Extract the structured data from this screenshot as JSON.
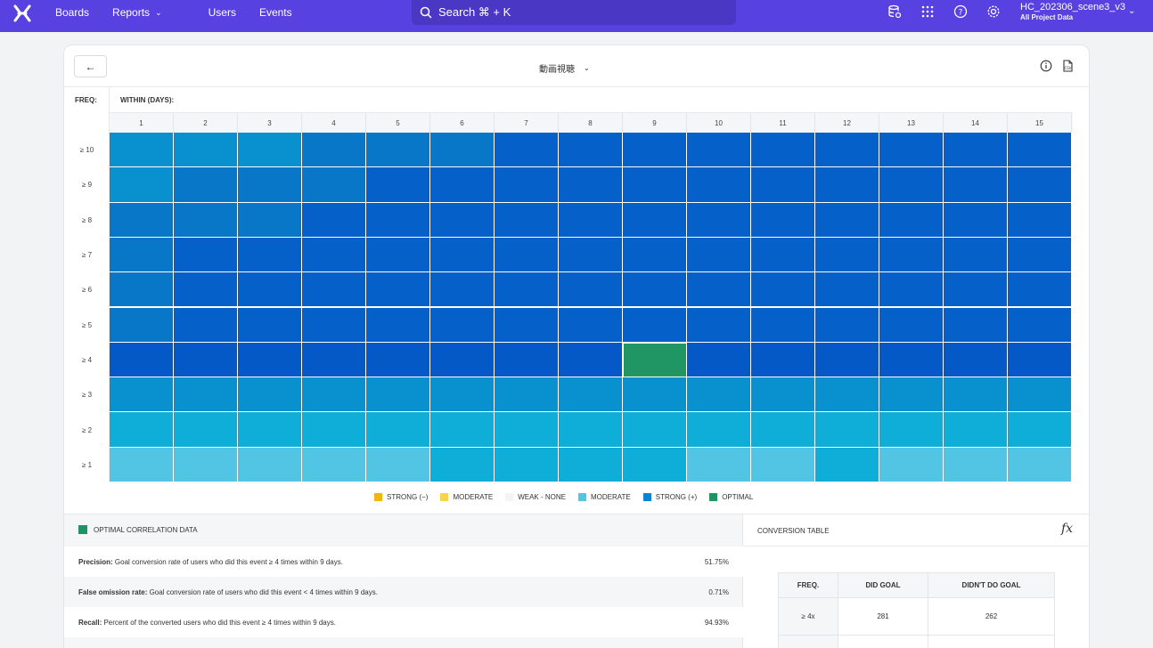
{
  "nav": {
    "links": [
      "Boards",
      "Reports",
      "Users",
      "Events"
    ],
    "search_label": "Search ⌘ + K",
    "project_name": "HC_202306_scene3_v3",
    "project_sub": "All Project Data",
    "icons": [
      "database-icon",
      "grid-apps-icon",
      "help-icon",
      "settings-icon"
    ]
  },
  "card": {
    "back_label": "←",
    "event_title": "動画視聴",
    "freq_label": "FREQ:",
    "within_label": "WITHIN (DAYS):"
  },
  "heatmap": {
    "columns": [
      "1",
      "2",
      "3",
      "4",
      "5",
      "6",
      "7",
      "8",
      "9",
      "10",
      "11",
      "12",
      "13",
      "14",
      "15"
    ],
    "rows": [
      "≥ 10",
      "≥ 9",
      "≥ 8",
      "≥ 7",
      "≥ 6",
      "≥ 5",
      "≥ 4",
      "≥ 3",
      "≥ 2",
      "≥ 1"
    ],
    "optimal": {
      "row": 6,
      "col": 8
    },
    "cell_levels": [
      [
        2,
        2,
        2,
        3,
        3,
        3,
        4,
        4,
        4,
        4,
        4,
        4,
        4,
        4,
        4
      ],
      [
        2,
        3,
        3,
        3,
        4,
        4,
        4,
        4,
        4,
        4,
        4,
        4,
        4,
        4,
        4
      ],
      [
        3,
        3,
        3,
        4,
        4,
        4,
        4,
        4,
        4,
        4,
        4,
        4,
        4,
        4,
        4
      ],
      [
        3,
        4,
        4,
        4,
        4,
        4,
        4,
        4,
        4,
        4,
        4,
        4,
        4,
        4,
        4
      ],
      [
        3,
        4,
        4,
        4,
        4,
        4,
        4,
        4,
        4,
        4,
        4,
        4,
        4,
        4,
        4
      ],
      [
        3,
        4,
        4,
        4,
        4,
        4,
        4,
        4,
        4,
        4,
        4,
        4,
        4,
        4,
        4
      ],
      [
        5,
        5,
        5,
        5,
        5,
        5,
        5,
        5,
        9,
        5,
        5,
        5,
        5,
        5,
        5
      ],
      [
        2,
        2,
        2,
        2,
        2,
        2,
        2,
        2,
        2,
        2,
        2,
        2,
        2,
        2,
        2
      ],
      [
        1,
        1,
        1,
        1,
        1,
        1,
        1,
        1,
        1,
        1,
        1,
        1,
        1,
        1,
        1
      ],
      [
        0,
        0,
        0,
        0,
        0,
        1,
        1,
        1,
        1,
        0,
        0,
        1,
        0,
        0,
        0
      ]
    ],
    "palette": {
      "0": "#52c5e5",
      "1": "#0eaed8",
      "2": "#0890cf",
      "3": "#0877c8",
      "4": "#0561c9",
      "5": "#0559c6",
      "9": "#209664"
    }
  },
  "legend": [
    {
      "label": "STRONG (−)",
      "color": "#f2b50a"
    },
    {
      "label": "MODERATE",
      "color": "#f7d54a"
    },
    {
      "label": "WEAK - NONE",
      "color": "#f3f4f6"
    },
    {
      "label": "MODERATE",
      "color": "#52c5e5"
    },
    {
      "label": "STRONG (+)",
      "color": "#0a86cf"
    },
    {
      "label": "OPTIMAL",
      "color": "#1e9363"
    }
  ],
  "optimal_panel": {
    "title": "OPTIMAL CORRELATION DATA",
    "metrics": [
      {
        "name": "Precision:",
        "desc": " Goal conversion rate of users who did this event ≥ 4 times within 9 days.",
        "value": "51.75%"
      },
      {
        "name": "False omission rate:",
        "desc": " Goal conversion rate of users who did this event < 4 times within 9 days.",
        "value": "0.71%"
      },
      {
        "name": "Recall:",
        "desc": " Percent of the converted users who did this event ≥ 4 times within 9 days.",
        "value": "94.93%"
      }
    ]
  },
  "conversion": {
    "title": "CONVERSION TABLE",
    "fx_label": "𝑓x",
    "headers": [
      "FREQ.",
      "DID GOAL",
      "DIDN'T DO GOAL"
    ],
    "rows": [
      [
        "≥ 4x",
        "281",
        "262"
      ],
      [
        "",
        "",
        ""
      ]
    ]
  }
}
